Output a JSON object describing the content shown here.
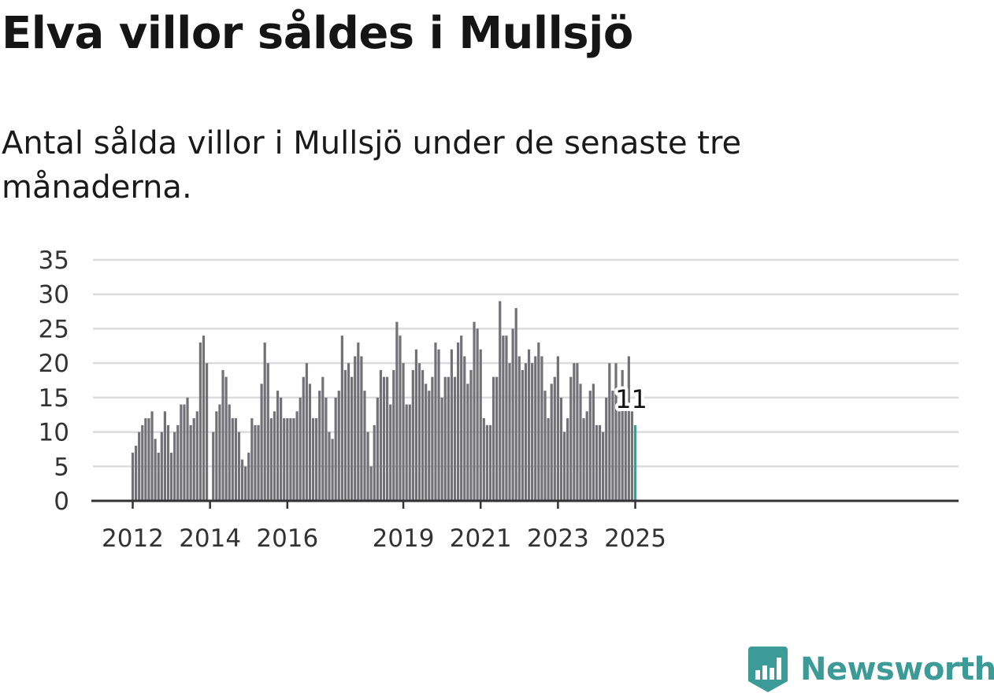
{
  "header": {
    "title": "Elva villor såldes i Mullsjö",
    "subtitle": "Antal sålda villor i Mullsjö under de senaste tre månaderna."
  },
  "logo": {
    "text": "Newsworthy",
    "icon": "newsworthy-logo-icon",
    "color": "#3d9b97"
  },
  "chart_data": {
    "type": "bar",
    "title": "Elva villor såldes i Mullsjö",
    "subtitle": "Antal sålda villor i Mullsjö under de senaste tre månaderna.",
    "xlabel": "",
    "ylabel": "",
    "ylim": [
      0,
      35
    ],
    "y_ticks": [
      0,
      5,
      10,
      15,
      20,
      25,
      30,
      35
    ],
    "x_tick_labels": [
      "2012",
      "2014",
      "2016",
      "2019",
      "2021",
      "2023",
      "2025"
    ],
    "grid": true,
    "legend": "none",
    "bar_color": "#727176",
    "highlight_color": "#26a69a",
    "first_period": "2012-01",
    "last_period": "2025-01",
    "annotation": {
      "label": "11",
      "period": "2025-01"
    },
    "values": [
      7,
      8,
      10,
      11,
      12,
      12,
      13,
      9,
      7,
      10,
      13,
      11,
      7,
      10,
      11,
      14,
      14,
      15,
      11,
      12,
      13,
      23,
      24,
      20,
      0,
      10,
      13,
      14,
      19,
      18,
      14,
      12,
      12,
      10,
      6,
      5,
      7,
      12,
      11,
      11,
      17,
      23,
      20,
      12,
      13,
      16,
      15,
      12,
      12,
      12,
      12,
      13,
      15,
      18,
      20,
      17,
      12,
      12,
      16,
      18,
      15,
      10,
      9,
      15,
      16,
      24,
      19,
      20,
      18,
      21,
      23,
      21,
      16,
      10,
      5,
      11,
      15,
      19,
      18,
      18,
      14,
      19,
      26,
      24,
      20,
      14,
      14,
      19,
      22,
      20,
      19,
      17,
      16,
      18,
      23,
      22,
      15,
      18,
      18,
      22,
      18,
      23,
      24,
      21,
      17,
      19,
      26,
      25,
      22,
      12,
      11,
      11,
      18,
      18,
      29,
      24,
      24,
      20,
      25,
      28,
      21,
      19,
      20,
      22,
      20,
      21,
      23,
      21,
      16,
      12,
      17,
      18,
      21,
      15,
      10,
      12,
      18,
      20,
      20,
      17,
      12,
      13,
      16,
      17,
      11,
      11,
      10,
      15,
      20,
      16,
      20,
      13,
      19,
      16,
      21,
      13,
      11
    ]
  }
}
